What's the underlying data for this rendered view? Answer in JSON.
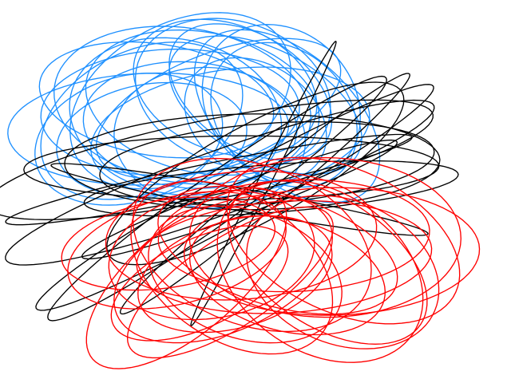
{
  "figure": {
    "description_text": "",
    "background": "#ffffff"
  },
  "trajectories": [
    {
      "color": "#1e90ff",
      "kind": "blue-loops"
    },
    {
      "color": "#000000",
      "kind": "black-loops"
    },
    {
      "color": "#ff0000",
      "kind": "red-loops"
    }
  ]
}
